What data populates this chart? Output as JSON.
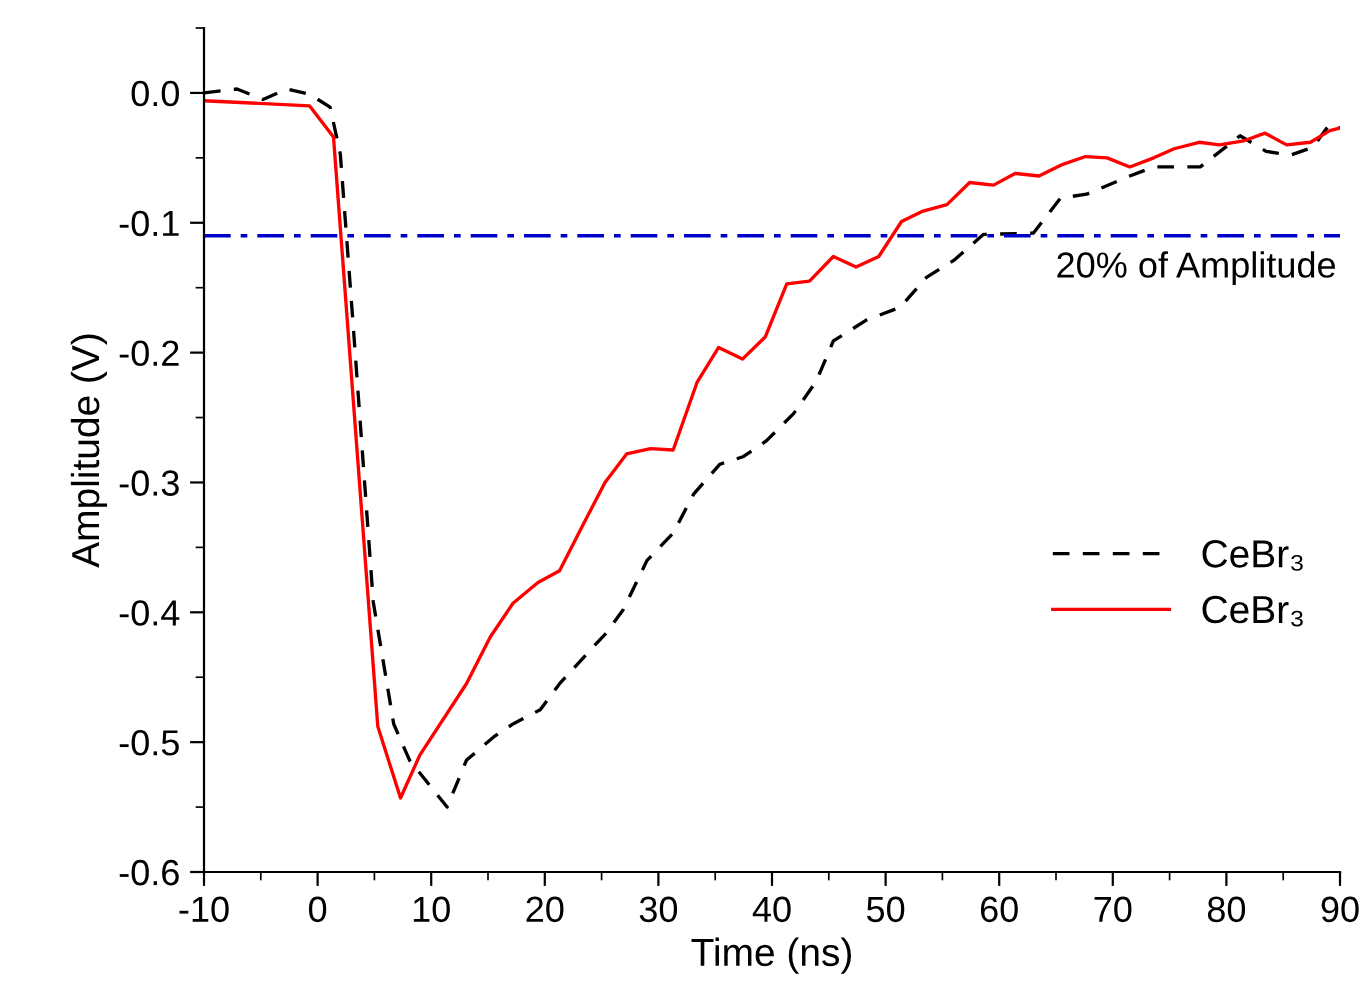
{
  "chart_data": {
    "type": "line",
    "xlabel": "Time (ns)",
    "ylabel": "Amplitude (V)",
    "xlim": [
      -10,
      90
    ],
    "xticks": [
      -10,
      0,
      10,
      20,
      30,
      40,
      50,
      60,
      70,
      80,
      90
    ],
    "ylim": [
      -0.6,
      0.05
    ],
    "yticks": [
      {
        "value": 0,
        "label": "0.0"
      },
      {
        "value": -0.1,
        "label": "-0.1"
      },
      {
        "value": -0.2,
        "label": "-0.2"
      },
      {
        "value": -0.3,
        "label": "-0.3"
      },
      {
        "value": -0.4,
        "label": "-0.4"
      },
      {
        "value": -0.5,
        "label": "-0.5"
      },
      {
        "value": -0.6,
        "label": "-0.6"
      }
    ],
    "grid": false,
    "legend": "right",
    "marker": "none",
    "ref_lines": [
      {
        "axis": "y",
        "value": -0.11,
        "label": "20% of Amplitude",
        "color": "#0000cc",
        "line_style": "dashdot"
      }
    ],
    "series": [
      {
        "name": "CeBr₃",
        "color": "#000000",
        "line_style": "dashed",
        "x": [
          -10,
          -7.1,
          -4.8,
          -2.7,
          -0.7,
          1.1,
          2.0,
          3.1,
          4.9,
          6.7,
          8.1,
          11.4,
          13.1,
          15.5,
          17.2,
          19.6,
          21.3,
          23.7,
          25.4,
          26.9,
          29.0,
          31.3,
          33.1,
          35.4,
          37.5,
          39.5,
          41.9,
          43.9,
          45.4,
          48.3,
          51.3,
          53.6,
          56.0,
          58.6,
          63.0,
          65.4,
          67.7,
          71.2,
          73.6,
          77.7,
          81.2,
          83.5,
          85.6,
          87.6,
          89.1,
          90
        ],
        "values": [
          0.0,
          0.003,
          -0.005,
          0.003,
          -0.001,
          -0.011,
          -0.047,
          -0.175,
          -0.392,
          -0.486,
          -0.514,
          -0.55,
          -0.514,
          -0.496,
          -0.486,
          -0.475,
          -0.455,
          -0.432,
          -0.416,
          -0.398,
          -0.36,
          -0.339,
          -0.309,
          -0.286,
          -0.28,
          -0.268,
          -0.247,
          -0.222,
          -0.191,
          -0.175,
          -0.165,
          -0.142,
          -0.129,
          -0.109,
          -0.108,
          -0.081,
          -0.078,
          -0.065,
          -0.057,
          -0.057,
          -0.033,
          -0.045,
          -0.048,
          -0.042,
          -0.024,
          -0.027
        ]
      },
      {
        "name": "CeBr₃",
        "color": "#ff0000",
        "line_style": "solid",
        "x": [
          -10,
          -0.7,
          1.4,
          5.3,
          7.3,
          9.0,
          13.1,
          15.2,
          17.2,
          19.4,
          21.3,
          23.4,
          25.3,
          27.2,
          29.3,
          31.3,
          33.4,
          35.3,
          37.4,
          39.4,
          41.3,
          43.3,
          45.4,
          47.4,
          49.4,
          51.4,
          53.3,
          55.4,
          57.4,
          59.5,
          61.4,
          63.5,
          65.6,
          67.6,
          69.5,
          71.5,
          73.6,
          75.4,
          77.6,
          79.4,
          81.5,
          83.4,
          85.3,
          87.4,
          89.1,
          90
        ],
        "values": [
          -0.006,
          -0.01,
          -0.034,
          -0.488,
          -0.543,
          -0.51,
          -0.455,
          -0.419,
          -0.393,
          -0.377,
          -0.368,
          -0.332,
          -0.3,
          -0.278,
          -0.274,
          -0.275,
          -0.223,
          -0.196,
          -0.205,
          -0.188,
          -0.147,
          -0.145,
          -0.126,
          -0.134,
          -0.126,
          -0.099,
          -0.091,
          -0.086,
          -0.069,
          -0.071,
          -0.062,
          -0.064,
          -0.055,
          -0.049,
          -0.05,
          -0.057,
          -0.05,
          -0.043,
          -0.038,
          -0.04,
          -0.037,
          -0.031,
          -0.04,
          -0.038,
          -0.029,
          -0.027
        ]
      }
    ]
  }
}
